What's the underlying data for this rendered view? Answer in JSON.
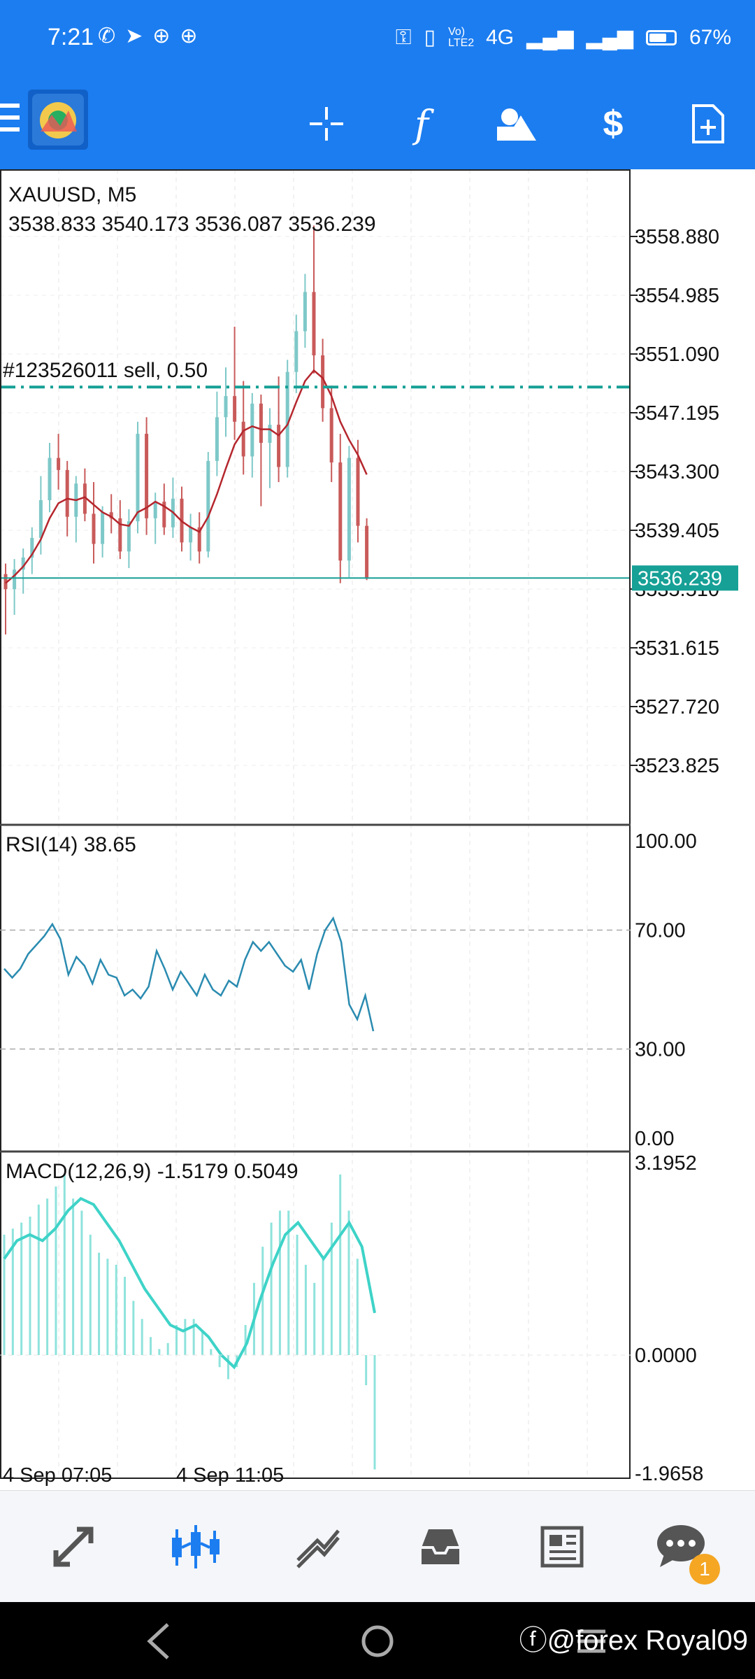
{
  "status_bar": {
    "time": "7:21",
    "network": "4G",
    "volte": "Vo) LTE2",
    "battery": "67%",
    "battery_level": 0.67
  },
  "toolbar": {
    "icons": [
      "menu-icon",
      "app-logo",
      "crosshair-icon",
      "function-icon",
      "objects-icon",
      "trade-icon",
      "new-order-icon"
    ],
    "function_glyph": "f"
  },
  "chart": {
    "symbol": "XAUUSD, M5",
    "ohlc": "3538.833 3540.173 3536.087 3536.239",
    "order_label": "#123526011 sell, 0.50",
    "order_price": 3548.9,
    "current_price": "3536.239",
    "current_price_value": 3536.239,
    "price_ticks": [
      "3558.880",
      "3554.985",
      "3551.090",
      "3547.195",
      "3543.300",
      "3539.405",
      "3535.510",
      "3531.615",
      "3527.720",
      "3523.825"
    ],
    "price_ticks_values": [
      3558.88,
      3554.985,
      3551.09,
      3547.195,
      3543.3,
      3539.405,
      3535.51,
      3531.615,
      3527.72,
      3523.825
    ],
    "time_labels": [
      "4 Sep 07:05",
      "4 Sep 11:05"
    ],
    "colors": {
      "up": "#7ec8c8",
      "down": "#c95a5a",
      "ma": "#b5262d",
      "order_line": "#16a096",
      "price_tag": "#16a096"
    }
  },
  "rsi": {
    "label": "RSI(14) 38.65",
    "ticks": [
      "100.00",
      "70.00",
      "30.00",
      "0.00"
    ],
    "line_color": "#2a8bb0",
    "values": [
      57,
      54,
      57,
      62,
      65,
      68,
      72,
      67,
      55,
      61,
      58,
      52,
      60,
      55,
      54,
      48,
      50,
      47,
      51,
      63,
      57,
      50,
      56,
      52,
      48,
      55,
      50,
      48,
      53,
      51,
      60,
      66,
      63,
      66,
      62,
      58,
      56,
      60,
      50,
      62,
      70,
      74,
      66,
      45,
      40,
      48,
      36
    ]
  },
  "macd": {
    "label": "MACD(12,26,9) -1.5179 0.5049",
    "ticks": [
      "3.1952",
      "0.0000",
      "-1.9658"
    ],
    "color": "#3ed3c8",
    "hist": [
      2.0,
      2.1,
      2.2,
      2.3,
      2.5,
      2.6,
      2.8,
      3.0,
      2.6,
      2.4,
      2.0,
      1.7,
      1.6,
      1.5,
      1.3,
      0.9,
      0.6,
      0.3,
      0.1,
      0.2,
      0.5,
      0.6,
      0.6,
      0.4,
      0.1,
      -0.2,
      -0.4,
      -0.2,
      0.5,
      1.2,
      1.8,
      2.2,
      2.4,
      2.4,
      2.0,
      1.5,
      1.2,
      1.6,
      2.2,
      3.0,
      2.4,
      1.6,
      -0.5,
      -1.9
    ],
    "signal": [
      1.6,
      1.9,
      2.0,
      1.9,
      2.1,
      2.4,
      2.6,
      2.5,
      2.2,
      1.9,
      1.5,
      1.1,
      0.8,
      0.5,
      0.4,
      0.5,
      0.3,
      0.0,
      -0.2,
      0.2,
      0.9,
      1.5,
      2.0,
      2.2,
      1.9,
      1.6,
      1.9,
      2.2,
      1.8,
      0.7
    ]
  },
  "candles": [
    [
      3536.5,
      3537.2,
      3532.5,
      3535.5
    ],
    [
      3535.5,
      3537.5,
      3533.8,
      3536.8
    ],
    [
      3536.8,
      3538.2,
      3535.2,
      3537.6
    ],
    [
      3537.6,
      3539.6,
      3536.5,
      3538.9
    ],
    [
      3538.9,
      3543.0,
      3537.8,
      3541.4
    ],
    [
      3541.4,
      3545.2,
      3540.6,
      3544.2
    ],
    [
      3544.2,
      3545.8,
      3542.1,
      3543.4
    ],
    [
      3543.4,
      3544.0,
      3539.0,
      3540.3
    ],
    [
      3540.3,
      3543.0,
      3538.6,
      3542.5
    ],
    [
      3542.5,
      3543.5,
      3540.0,
      3540.5
    ],
    [
      3540.5,
      3542.6,
      3537.2,
      3538.5
    ],
    [
      3538.5,
      3541.0,
      3537.6,
      3540.6
    ],
    [
      3540.6,
      3541.8,
      3539.2,
      3540.2
    ],
    [
      3540.2,
      3541.4,
      3537.5,
      3538.0
    ],
    [
      3538.0,
      3540.8,
      3536.9,
      3540.0
    ],
    [
      3540.0,
      3546.6,
      3539.2,
      3545.8
    ],
    [
      3545.8,
      3546.9,
      3539.1,
      3540.2
    ],
    [
      3540.2,
      3541.9,
      3538.5,
      3541.3
    ],
    [
      3541.3,
      3542.5,
      3539.1,
      3539.6
    ],
    [
      3539.6,
      3542.9,
      3538.9,
      3541.5
    ],
    [
      3541.5,
      3542.3,
      3538.0,
      3538.6
    ],
    [
      3538.6,
      3540.5,
      3537.4,
      3539.6
    ],
    [
      3539.6,
      3540.6,
      3537.2,
      3538.0
    ],
    [
      3538.0,
      3544.6,
      3537.6,
      3544.0
    ],
    [
      3544.0,
      3548.6,
      3543.0,
      3546.9
    ],
    [
      3546.9,
      3550.2,
      3545.6,
      3548.3
    ],
    [
      3548.3,
      3552.9,
      3545.4,
      3546.6
    ],
    [
      3546.6,
      3549.3,
      3543.1,
      3544.3
    ],
    [
      3544.3,
      3548.5,
      3542.9,
      3547.8
    ],
    [
      3547.8,
      3548.4,
      3541.0,
      3545.2
    ],
    [
      3545.2,
      3547.5,
      3542.2,
      3546.4
    ],
    [
      3546.4,
      3549.6,
      3542.6,
      3543.6
    ],
    [
      3543.6,
      3550.7,
      3542.9,
      3549.9
    ],
    [
      3549.9,
      3553.7,
      3548.5,
      3552.6
    ],
    [
      3552.6,
      3556.4,
      3551.5,
      3555.2
    ],
    [
      3555.2,
      3559.6,
      3549.8,
      3551.0
    ],
    [
      3551.0,
      3552.1,
      3546.6,
      3547.5
    ],
    [
      3547.5,
      3549.0,
      3542.6,
      3543.9
    ],
    [
      3543.9,
      3545.8,
      3535.9,
      3537.4
    ],
    [
      3537.4,
      3545.0,
      3536.3,
      3544.2
    ],
    [
      3544.2,
      3545.4,
      3538.6,
      3539.7
    ],
    [
      3539.7,
      3540.2,
      3536.1,
      3536.2
    ]
  ],
  "ma_values": [
    3535.9,
    3536.4,
    3537.0,
    3537.8,
    3538.8,
    3540.2,
    3541.2,
    3541.5,
    3541.4,
    3541.6,
    3541.1,
    3540.6,
    3540.3,
    3539.8,
    3539.7,
    3540.6,
    3540.9,
    3541.3,
    3541.0,
    3540.6,
    3540.0,
    3539.6,
    3539.3,
    3540.3,
    3541.8,
    3543.5,
    3545.1,
    3546.0,
    3546.3,
    3546.1,
    3546.1,
    3545.7,
    3546.4,
    3547.9,
    3549.3,
    3550.0,
    3549.5,
    3548.3,
    3546.6,
    3545.4,
    3544.4,
    3543.1
  ]
}
